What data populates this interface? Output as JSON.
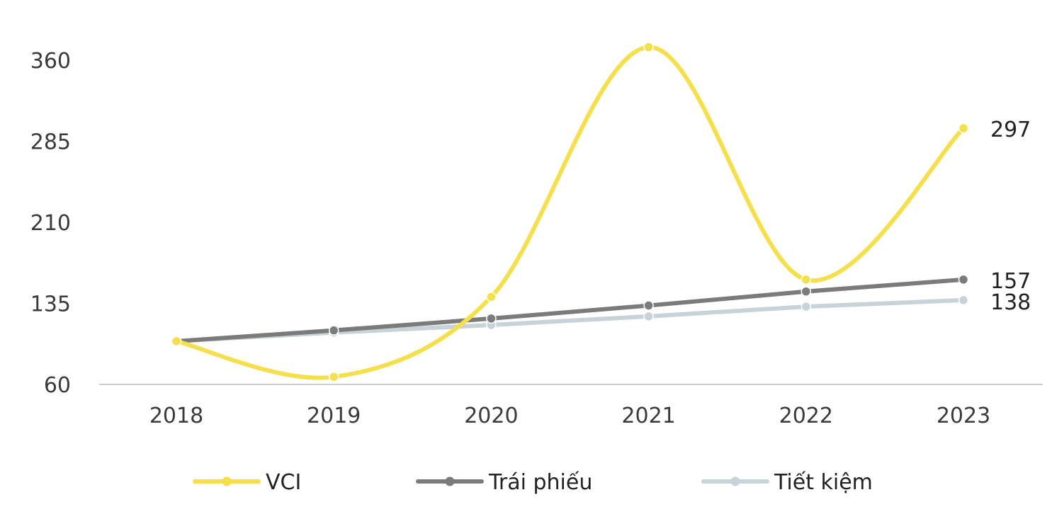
{
  "chart_data": {
    "type": "line",
    "categories": [
      "2018",
      "2019",
      "2020",
      "2021",
      "2022",
      "2023"
    ],
    "yticks": [
      "360",
      "285",
      "210",
      "135",
      "60"
    ],
    "ylim": [
      60,
      360
    ],
    "grid": false,
    "legend_position": "bottom",
    "series": [
      {
        "name": "VCI",
        "values": [
          100,
          67,
          141,
          372,
          157,
          297
        ],
        "color": "#F5DF4D",
        "smooth": true,
        "end_label": "297"
      },
      {
        "name": "Trái phiếu",
        "values": [
          100,
          110,
          121,
          133,
          146,
          157
        ],
        "color": "#7B7B7B",
        "smooth": false,
        "end_label": "157"
      },
      {
        "name": "Tiết kiệm",
        "values": [
          100,
          108,
          115,
          123,
          132,
          138
        ],
        "color": "#C7D3D8",
        "smooth": false,
        "end_label": "138"
      }
    ]
  }
}
